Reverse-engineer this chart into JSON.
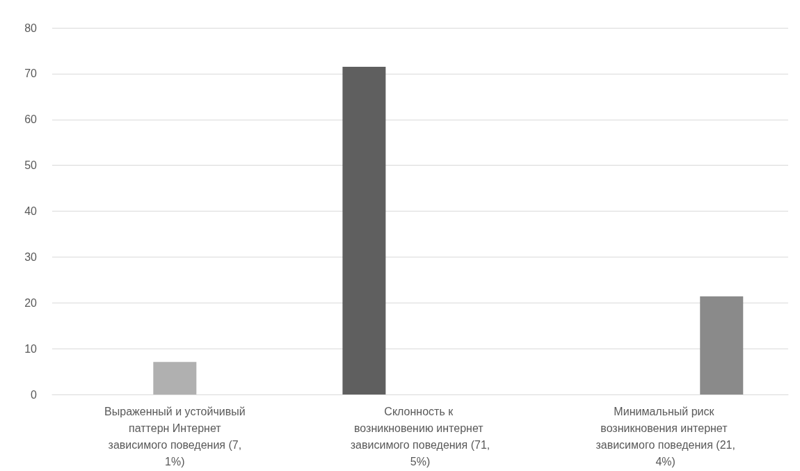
{
  "chart_data": {
    "type": "bar",
    "categories": [
      "Выраженный и устойчивый паттерн Интернет зависимого поведения (7,1%)",
      "Склонность к возникновению интернет зависимого поведения (71,5%)",
      "Минимальный риск возникновения интернет зависимого поведения (21,4%)"
    ],
    "series": [
      {
        "color": "#5f5f5f",
        "values": [
          null,
          71.5,
          null
        ]
      },
      {
        "color": "#b0b0b0",
        "values": [
          7.1,
          null,
          null
        ]
      },
      {
        "color": "#8a8a8a",
        "values": [
          null,
          null,
          21.4
        ]
      }
    ],
    "ylim": [
      0,
      80
    ],
    "yticks": [
      0,
      10,
      20,
      30,
      40,
      50,
      60,
      70,
      80
    ],
    "grid": "y"
  }
}
